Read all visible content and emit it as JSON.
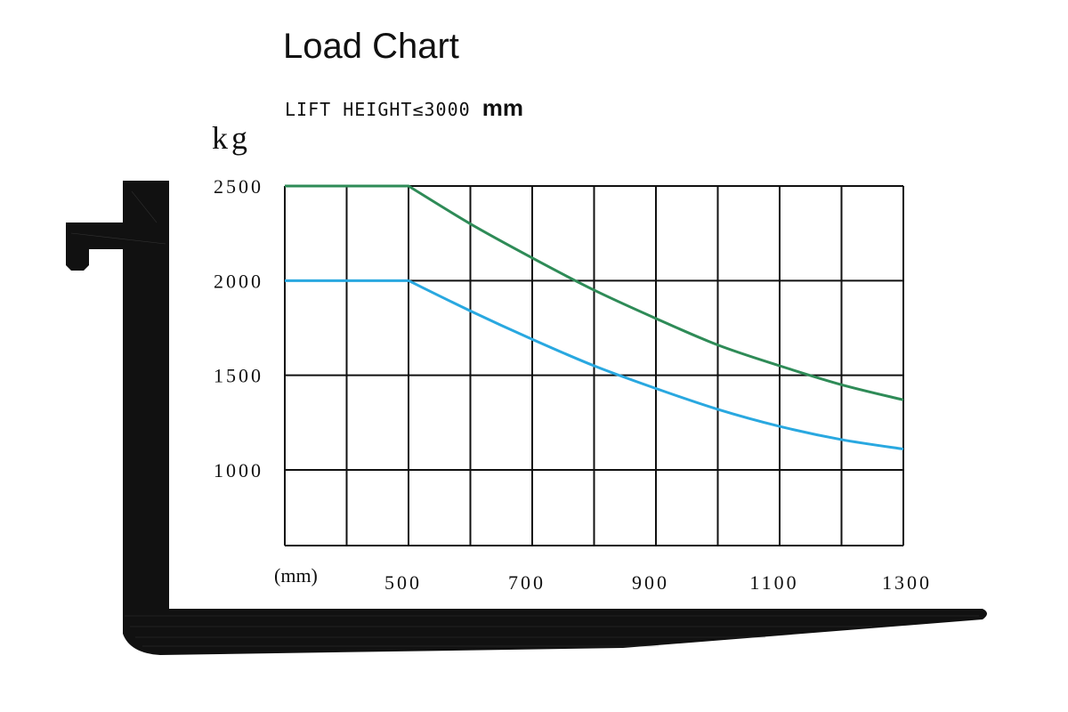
{
  "title": "Load Chart",
  "subtitle_prefix": "LIFT HEIGHT≤3000",
  "subtitle_unit": "mm",
  "colors": {
    "series_upper": "#2e8b57",
    "series_lower": "#29a8e0",
    "grid": "#111111",
    "fork": "#111111"
  },
  "icons": {
    "fork": "forklift-fork-icon"
  },
  "chart_data": {
    "type": "line",
    "title": "Load Chart",
    "ylabel": "kg",
    "xlabel": "(mm)",
    "xlim": [
      300,
      1300
    ],
    "ylim": [
      600,
      2500
    ],
    "x_ticks": [
      500,
      700,
      900,
      1100,
      1300
    ],
    "y_ticks": [
      1000,
      1500,
      2000,
      2500
    ],
    "grid": true,
    "series": [
      {
        "x": [
          300,
          500,
          600,
          700,
          800,
          900,
          1000,
          1100,
          1200,
          1300
        ],
        "values": [
          2500,
          2500,
          2300,
          2120,
          1950,
          1800,
          1660,
          1550,
          1450,
          1370
        ]
      },
      {
        "x": [
          300,
          500,
          600,
          700,
          800,
          900,
          1000,
          1100,
          1200,
          1300
        ],
        "values": [
          2000,
          2000,
          1840,
          1690,
          1550,
          1430,
          1320,
          1230,
          1160,
          1110
        ]
      }
    ]
  }
}
